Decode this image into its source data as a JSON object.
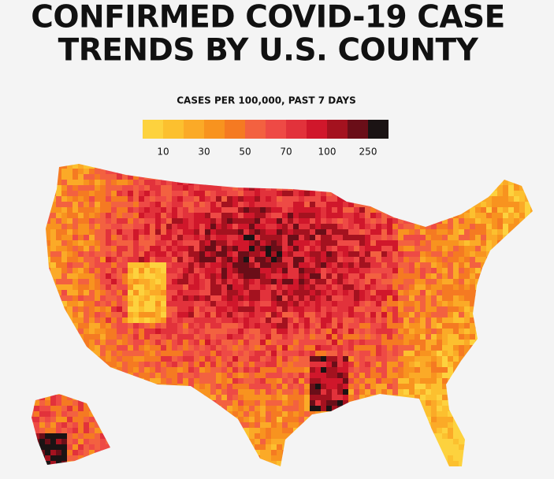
{
  "header": {
    "title_lines": [
      "CONFIRMED COVID-19 CASE",
      "TRENDS BY U.S. COUNTY"
    ]
  },
  "legend": {
    "title": "CASES PER 100,000, PAST 7 DAYS",
    "colors": [
      "#fdd23e",
      "#fcc02f",
      "#fbaa27",
      "#f8931f",
      "#f57a22",
      "#f36140",
      "#ee4a45",
      "#e2323b",
      "#d0172b",
      "#a4121f",
      "#6a0e18",
      "#1b1314"
    ],
    "ticks": [
      10,
      30,
      50,
      70,
      100,
      250
    ]
  }
}
